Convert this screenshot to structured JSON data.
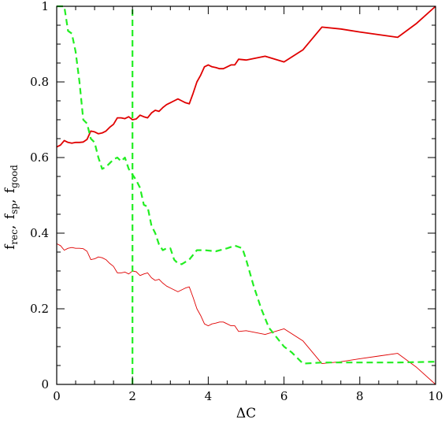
{
  "chart_data": {
    "type": "line",
    "xlabel": "ΔC",
    "ylabel": {
      "base": "f",
      "parts": [
        {
          "sub": "rec",
          "sep": ", "
        },
        {
          "sub": "sp",
          "sep": ", "
        },
        {
          "sub": "good",
          "sep": ""
        }
      ]
    },
    "xlim": [
      0,
      10
    ],
    "ylim": [
      0,
      1
    ],
    "x_ticks": [
      0,
      2,
      4,
      6,
      8,
      10
    ],
    "y_ticks": [
      0,
      0.2,
      0.4,
      0.6,
      0.8,
      1
    ],
    "x_tick_labels": [
      "0",
      "2",
      "4",
      "6",
      "8",
      "10"
    ],
    "y_tick_labels": [
      "0",
      "0.2",
      "0.4",
      "0.6",
      "0.8",
      "1"
    ],
    "grid": false,
    "legend": "none",
    "series": [
      {
        "color": "#e00000",
        "style": "solid-thick",
        "x": [
          0,
          0.1,
          0.2,
          0.3,
          0.4,
          0.5,
          0.6,
          0.7,
          0.8,
          0.9,
          1.0,
          1.1,
          1.2,
          1.3,
          1.4,
          1.5,
          1.6,
          1.7,
          1.8,
          1.9,
          2.0,
          2.1,
          2.2,
          2.3,
          2.4,
          2.5,
          2.6,
          2.7,
          2.8,
          2.9,
          3.0,
          3.1,
          3.2,
          3.3,
          3.4,
          3.5,
          3.6,
          3.7,
          3.8,
          3.9,
          4.0,
          4.1,
          4.2,
          4.3,
          4.4,
          4.5,
          4.6,
          4.7,
          4.8,
          5.0,
          5.5,
          6.0,
          6.5,
          7.0,
          7.5,
          8.0,
          8.5,
          9.0,
          9.5,
          10.0
        ],
        "y": [
          0.628,
          0.633,
          0.645,
          0.64,
          0.638,
          0.64,
          0.64,
          0.641,
          0.648,
          0.67,
          0.668,
          0.663,
          0.665,
          0.67,
          0.68,
          0.688,
          0.705,
          0.705,
          0.703,
          0.708,
          0.7,
          0.702,
          0.712,
          0.708,
          0.705,
          0.718,
          0.725,
          0.722,
          0.732,
          0.74,
          0.745,
          0.75,
          0.755,
          0.75,
          0.745,
          0.742,
          0.77,
          0.8,
          0.818,
          0.84,
          0.845,
          0.84,
          0.838,
          0.835,
          0.835,
          0.84,
          0.845,
          0.845,
          0.86,
          0.858,
          0.868,
          0.853,
          0.885,
          0.945,
          0.94,
          0.932,
          0.925,
          0.918,
          0.955,
          1.0
        ]
      },
      {
        "color": "#e00000",
        "style": "solid-thin",
        "x": [
          0,
          0.1,
          0.2,
          0.3,
          0.4,
          0.5,
          0.6,
          0.7,
          0.8,
          0.9,
          1.0,
          1.1,
          1.2,
          1.3,
          1.4,
          1.5,
          1.6,
          1.7,
          1.8,
          1.9,
          2.0,
          2.1,
          2.2,
          2.3,
          2.4,
          2.5,
          2.6,
          2.7,
          2.8,
          2.9,
          3.0,
          3.1,
          3.2,
          3.3,
          3.4,
          3.5,
          3.6,
          3.7,
          3.8,
          3.9,
          4.0,
          4.1,
          4.2,
          4.3,
          4.4,
          4.5,
          4.6,
          4.7,
          4.8,
          5.0,
          5.5,
          6.0,
          6.5,
          7.0,
          7.5,
          8.0,
          8.5,
          9.0,
          9.5,
          10.0
        ],
        "y": [
          0.372,
          0.367,
          0.355,
          0.36,
          0.362,
          0.36,
          0.36,
          0.359,
          0.352,
          0.33,
          0.332,
          0.337,
          0.335,
          0.33,
          0.32,
          0.312,
          0.295,
          0.295,
          0.297,
          0.292,
          0.3,
          0.298,
          0.288,
          0.292,
          0.295,
          0.282,
          0.275,
          0.278,
          0.268,
          0.26,
          0.255,
          0.25,
          0.245,
          0.25,
          0.255,
          0.258,
          0.23,
          0.2,
          0.182,
          0.16,
          0.155,
          0.16,
          0.162,
          0.165,
          0.165,
          0.16,
          0.155,
          0.155,
          0.14,
          0.142,
          0.132,
          0.147,
          0.115,
          0.055,
          0.06,
          0.068,
          0.075,
          0.082,
          0.045,
          0.0
        ]
      },
      {
        "color": "#22ee22",
        "style": "dashed",
        "x": [
          0.0,
          0.2,
          0.3,
          0.4,
          0.5,
          0.6,
          0.7,
          0.8,
          0.9,
          1.0,
          1.1,
          1.2,
          1.3,
          1.4,
          1.5,
          1.6,
          1.7,
          1.8,
          1.9,
          2.0,
          2.1,
          2.2,
          2.3,
          2.4,
          2.5,
          2.6,
          2.7,
          2.8,
          2.9,
          3.0,
          3.1,
          3.2,
          3.3,
          3.5,
          3.7,
          3.9,
          4.2,
          4.5,
          4.7,
          4.9,
          5.0,
          5.2,
          5.4,
          5.6,
          5.8,
          6.0,
          6.2,
          6.5,
          7.0,
          8.0,
          9.0,
          10.0
        ],
        "y": [
          1.0,
          1.0,
          0.935,
          0.928,
          0.88,
          0.8,
          0.7,
          0.69,
          0.65,
          0.64,
          0.6,
          0.57,
          0.575,
          0.585,
          0.595,
          0.6,
          0.59,
          0.6,
          0.57,
          0.555,
          0.54,
          0.52,
          0.475,
          0.47,
          0.42,
          0.4,
          0.37,
          0.355,
          0.36,
          0.36,
          0.33,
          0.32,
          0.318,
          0.33,
          0.355,
          0.355,
          0.352,
          0.36,
          0.367,
          0.36,
          0.33,
          0.26,
          0.2,
          0.15,
          0.125,
          0.1,
          0.085,
          0.055,
          0.058,
          0.058,
          0.058,
          0.06
        ]
      },
      {
        "color": "#22ee22",
        "style": "dashed",
        "x": [
          2.0,
          2.0
        ],
        "y": [
          0.0,
          1.0
        ]
      }
    ]
  }
}
